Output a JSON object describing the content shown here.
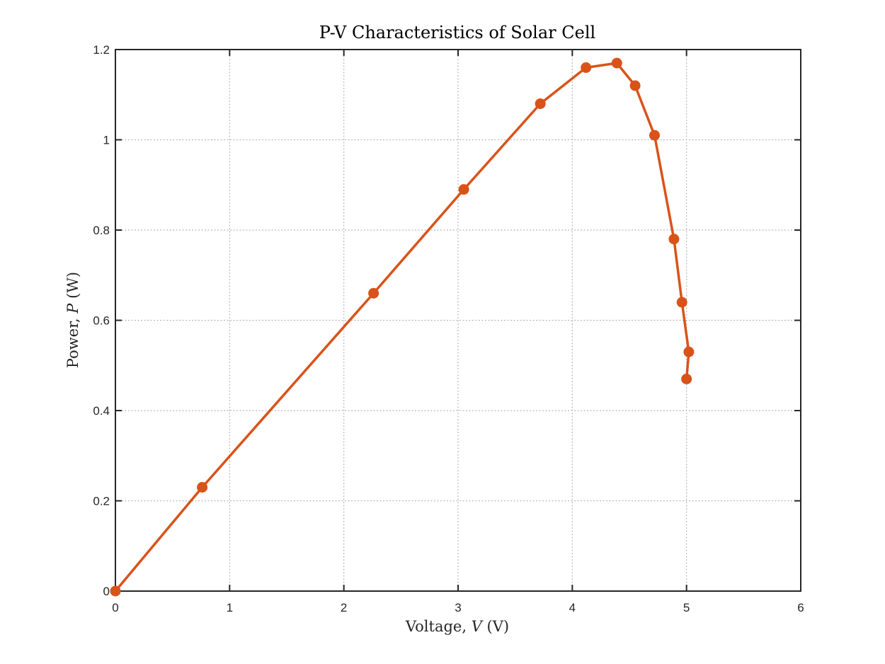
{
  "chart_data": {
    "type": "line",
    "title": "P-V Characteristics of Solar Cell",
    "xlabel_plain": "Voltage, ",
    "xlabel_var": "V",
    "xlabel_unit": " (V)",
    "ylabel_plain": "Power, ",
    "ylabel_var": "P",
    "ylabel_unit": " (W)",
    "xlim": [
      0,
      6
    ],
    "ylim": [
      0,
      1.2
    ],
    "xticks": [
      0,
      1,
      2,
      3,
      4,
      5,
      6
    ],
    "xtick_labels": [
      "0",
      "1",
      "2",
      "3",
      "4",
      "5",
      "6"
    ],
    "yticks": [
      0,
      0.2,
      0.4,
      0.6,
      0.8,
      1,
      1.2
    ],
    "ytick_labels": [
      "0",
      "0.2",
      "0.4",
      "0.6",
      "0.8",
      "1",
      "1.2"
    ],
    "grid": true,
    "series": [
      {
        "color": "#D95319",
        "marker": "circle",
        "x": [
          0,
          0.76,
          2.26,
          3.05,
          3.72,
          4.12,
          4.39,
          4.55,
          4.72,
          4.89,
          4.96,
          5.02,
          5.0
        ],
        "y": [
          0,
          0.23,
          0.66,
          0.89,
          1.08,
          1.16,
          1.17,
          1.12,
          1.01,
          0.78,
          0.64,
          0.53,
          0.47
        ]
      }
    ]
  }
}
